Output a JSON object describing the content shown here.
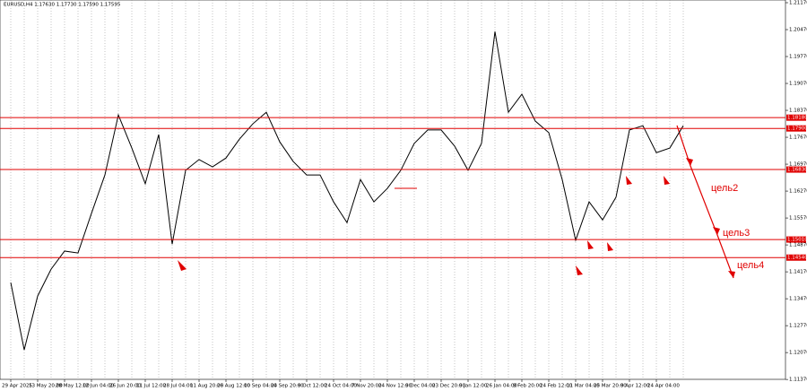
{
  "chart_data": {
    "type": "line",
    "title": "EURUSD,H4 1.17630 1.17730 1.17590 1.17595",
    "categories": [
      "29 Apr 2025",
      null,
      "13 May 20:00",
      null,
      "28 May 12:00",
      null,
      "12 Jun 04:00",
      null,
      "26 Jun 20:00",
      null,
      "11 Jul 12:00",
      null,
      "28 Jul 04:00",
      null,
      "11 Aug 20:00",
      null,
      "26 Aug 12:00",
      null,
      "10 Sep 04:00",
      null,
      "24 Sep 20:00",
      null,
      "9 Oct 12:00",
      null,
      "24 Oct 04:00",
      null,
      "7 Nov 20:00",
      null,
      "24 Nov 12:00",
      null,
      "9 Dec 04:00",
      null,
      "23 Dec 20:00",
      null,
      "9 Jan 12:00",
      null,
      "26 Jan 04:00",
      null,
      "9 Feb 20:00",
      null,
      "24 Feb 12:00",
      null,
      "11 Mar 04:00",
      null,
      "25 Mar 20:00",
      null,
      "9 Apr 12:00",
      null,
      "24 Apr 04:00",
      null,
      null
    ],
    "series": [
      {
        "name": "EURUSD",
        "color": "#000000",
        "values": [
          1.1389,
          1.1214,
          1.1354,
          1.1424,
          1.1471,
          1.1466,
          1.1569,
          1.1669,
          1.1825,
          1.1739,
          1.1646,
          1.1774,
          1.1489,
          1.1681,
          1.1709,
          1.169,
          1.1713,
          1.1762,
          1.1802,
          1.1832,
          1.1755,
          1.1704,
          1.1669,
          1.1669,
          1.1599,
          1.1545,
          1.1657,
          1.1599,
          1.1634,
          1.1681,
          1.1751,
          1.1786,
          1.1786,
          1.1744,
          1.1681,
          1.1751,
          1.2042,
          1.1832,
          1.1879,
          1.1809,
          1.1779,
          1.1657,
          1.1499,
          1.1599,
          1.1552,
          1.1611,
          1.1786,
          1.1797,
          1.1727,
          1.1739,
          1.1797
        ]
      }
    ],
    "ylim": [
      1.1107,
      1.2124
    ],
    "yticks": [
      {
        "value": 1.2117,
        "label": "1.21170"
      },
      {
        "value": 1.2047,
        "label": "1.20470"
      },
      {
        "value": 1.1977,
        "label": "1.19770"
      },
      {
        "value": 1.1907,
        "label": "1.19070"
      },
      {
        "value": 1.1837,
        "label": "1.18370"
      },
      {
        "value": 1.1767,
        "label": "1.17670"
      },
      {
        "value": 1.1697,
        "label": "1.16970"
      },
      {
        "value": 1.1627,
        "label": "1.16270"
      },
      {
        "value": 1.1557,
        "label": "1.15570"
      },
      {
        "value": 1.1487,
        "label": "1.14870"
      },
      {
        "value": 1.1417,
        "label": "1.14170"
      },
      {
        "value": 1.1347,
        "label": "1.13470"
      },
      {
        "value": 1.1277,
        "label": "1.12770"
      },
      {
        "value": 1.1207,
        "label": "1.12070"
      },
      {
        "value": 1.1137,
        "label": "1.11370"
      }
    ],
    "levels": [
      {
        "value": 1.1818,
        "label": "1.18180"
      },
      {
        "value": 1.179,
        "label": "1.17900"
      },
      {
        "value": 1.1683,
        "label": "1.16830"
      },
      {
        "value": 1.1501,
        "label": "1.15010"
      },
      {
        "value": 1.1454,
        "label": "1.14540"
      }
    ],
    "level_color": "#e00000",
    "annotations": [
      "цель2",
      "цель3",
      "цель4"
    ],
    "grid": true
  }
}
